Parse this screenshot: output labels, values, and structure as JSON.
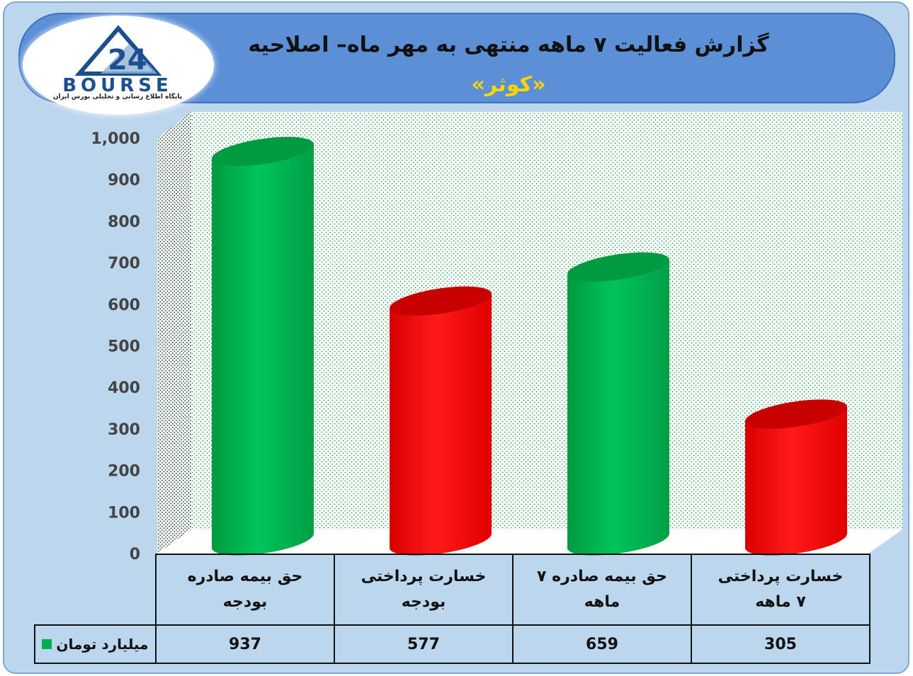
{
  "header": {
    "title": "گزارش فعالیت ۷ ماهه منتهی به مهر ماه– اصلاحیه",
    "subtitle": "«کوثر»"
  },
  "logo": {
    "word": "BOURSE",
    "tagline": "پایگاه اطلاع رسانی و تحلیلی بورس ایران"
  },
  "chart_data": {
    "type": "bar",
    "categories": [
      "حق بیمه صادره بودجه",
      "خسارت پرداختی بودجه",
      "حق بیمه صادره ۷ ماهه",
      "خسارت پرداختی ۷ ماهه"
    ],
    "category_lines": [
      [
        "حق بیمه صادره",
        "بودجه"
      ],
      [
        "خسارت پرداختی",
        "بودجه"
      ],
      [
        "حق بیمه صادره ۷",
        "ماهه"
      ],
      [
        "خسارت پرداختی",
        "۷ ماهه"
      ]
    ],
    "series": [
      {
        "name": "میلیارد تومان",
        "values": [
          937,
          577,
          659,
          305
        ]
      }
    ],
    "value_labels": [
      "937",
      "577",
      "659",
      "305"
    ],
    "bar_colors": [
      "#00b050",
      "#ff0000",
      "#00b050",
      "#ff0000"
    ],
    "ylim": [
      0,
      1000
    ],
    "yticks": [
      "0",
      "100",
      "200",
      "300",
      "400",
      "500",
      "600",
      "700",
      "800",
      "900",
      "1,000"
    ],
    "grid": false,
    "legend_color": "#00b050"
  }
}
